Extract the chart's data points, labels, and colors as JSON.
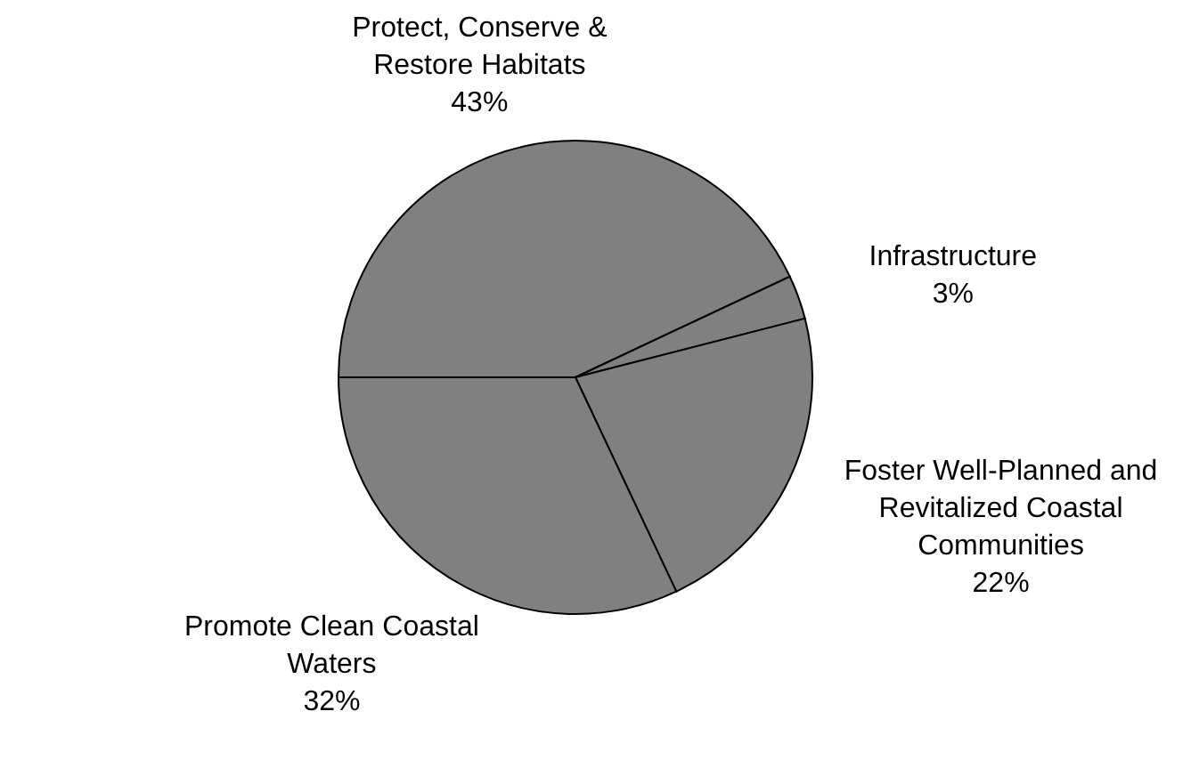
{
  "chart_data": {
    "type": "pie",
    "categories": [
      "Protect, Conserve & Restore Habitats",
      "Infrastructure",
      "Foster Well-Planned and Revitalized Coastal Communities",
      "Promote Clean Coastal Waters"
    ],
    "values": [
      43,
      3,
      22,
      32
    ],
    "colors": [
      "#808080",
      "#808080",
      "#808080",
      "#808080"
    ],
    "value_labels": [
      "43%",
      "3%",
      "22%",
      "32%"
    ],
    "legend": false
  }
}
